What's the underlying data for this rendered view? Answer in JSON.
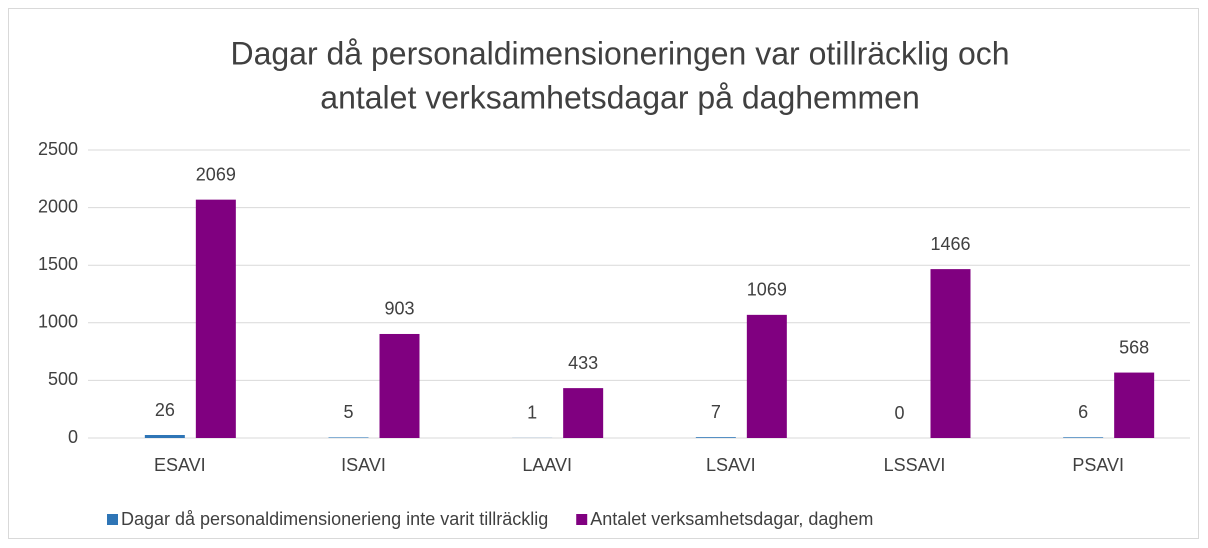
{
  "chart_data": {
    "type": "bar",
    "title": [
      "Dagar då personaldimensioneringen var otillräcklig och",
      "antalet verksamhetsdagar på daghemmen"
    ],
    "categories": [
      "ESAVI",
      "ISAVI",
      "LAAVI",
      "LSAVI",
      "LSSAVI",
      "PSAVI"
    ],
    "series": [
      {
        "name": "Dagar då personaldimensionerieng inte varit tillräcklig",
        "color": "#2e75b6",
        "values": [
          26,
          5,
          1,
          7,
          0,
          6
        ]
      },
      {
        "name": "Antalet verksamhetsdagar, daghem",
        "color": "#800080",
        "values": [
          2069,
          903,
          433,
          1069,
          1466,
          568
        ]
      }
    ],
    "ylim": [
      0,
      2500
    ],
    "yticks": [
      0,
      500,
      1000,
      1500,
      2000,
      2500
    ],
    "grid": true,
    "legend": "bottom"
  }
}
